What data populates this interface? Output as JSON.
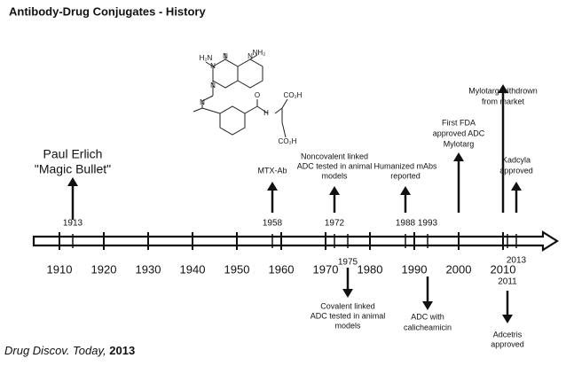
{
  "header": {
    "title": "Antibody-Drug Conjugates - History"
  },
  "axis": {
    "decades": [
      1910,
      1920,
      1930,
      1940,
      1950,
      1960,
      1970,
      1980,
      1990,
      2000,
      2010
    ]
  },
  "events": [
    {
      "year": 1913,
      "label": [
        "Paul Erlich",
        "\"Magic Bullet\""
      ],
      "direction": "up"
    },
    {
      "year": 1958,
      "label": [
        "MTX-Ab"
      ],
      "direction": "up"
    },
    {
      "year": 1972,
      "label": [
        "Noncovalent linked",
        "ADC tested in animal",
        "models"
      ],
      "direction": "up"
    },
    {
      "year": 1975,
      "label": [
        "Covalent linked",
        "ADC tested in animal",
        "models"
      ],
      "direction": "down"
    },
    {
      "year": 1988,
      "label": [
        "Humanized mAbs",
        "reported"
      ],
      "direction": "up"
    },
    {
      "year": 1993,
      "label": [
        "ADC with",
        "calicheamicin"
      ],
      "direction": "down"
    },
    {
      "position": 2000,
      "label": [
        "First FDA",
        "approved ADC",
        "Mylotarg"
      ],
      "direction": "up"
    },
    {
      "position": 2010,
      "label": [
        "Mylotarg withdrown",
        "from market"
      ],
      "direction": "up"
    },
    {
      "year": 2013,
      "label": [
        "Kadcyla",
        "approved"
      ],
      "direction": "up"
    },
    {
      "year": 2011,
      "label": [
        "Adcetris",
        "approved"
      ],
      "direction": "down"
    }
  ],
  "structure": {
    "labels": [
      "H₂N",
      "NH₂",
      "N",
      "N",
      "N",
      "N",
      "N",
      "H",
      "O",
      "CO₂H",
      "CO₂H"
    ]
  },
  "footer": {
    "source": "Drug Discov. Today,",
    "year": "2013"
  }
}
